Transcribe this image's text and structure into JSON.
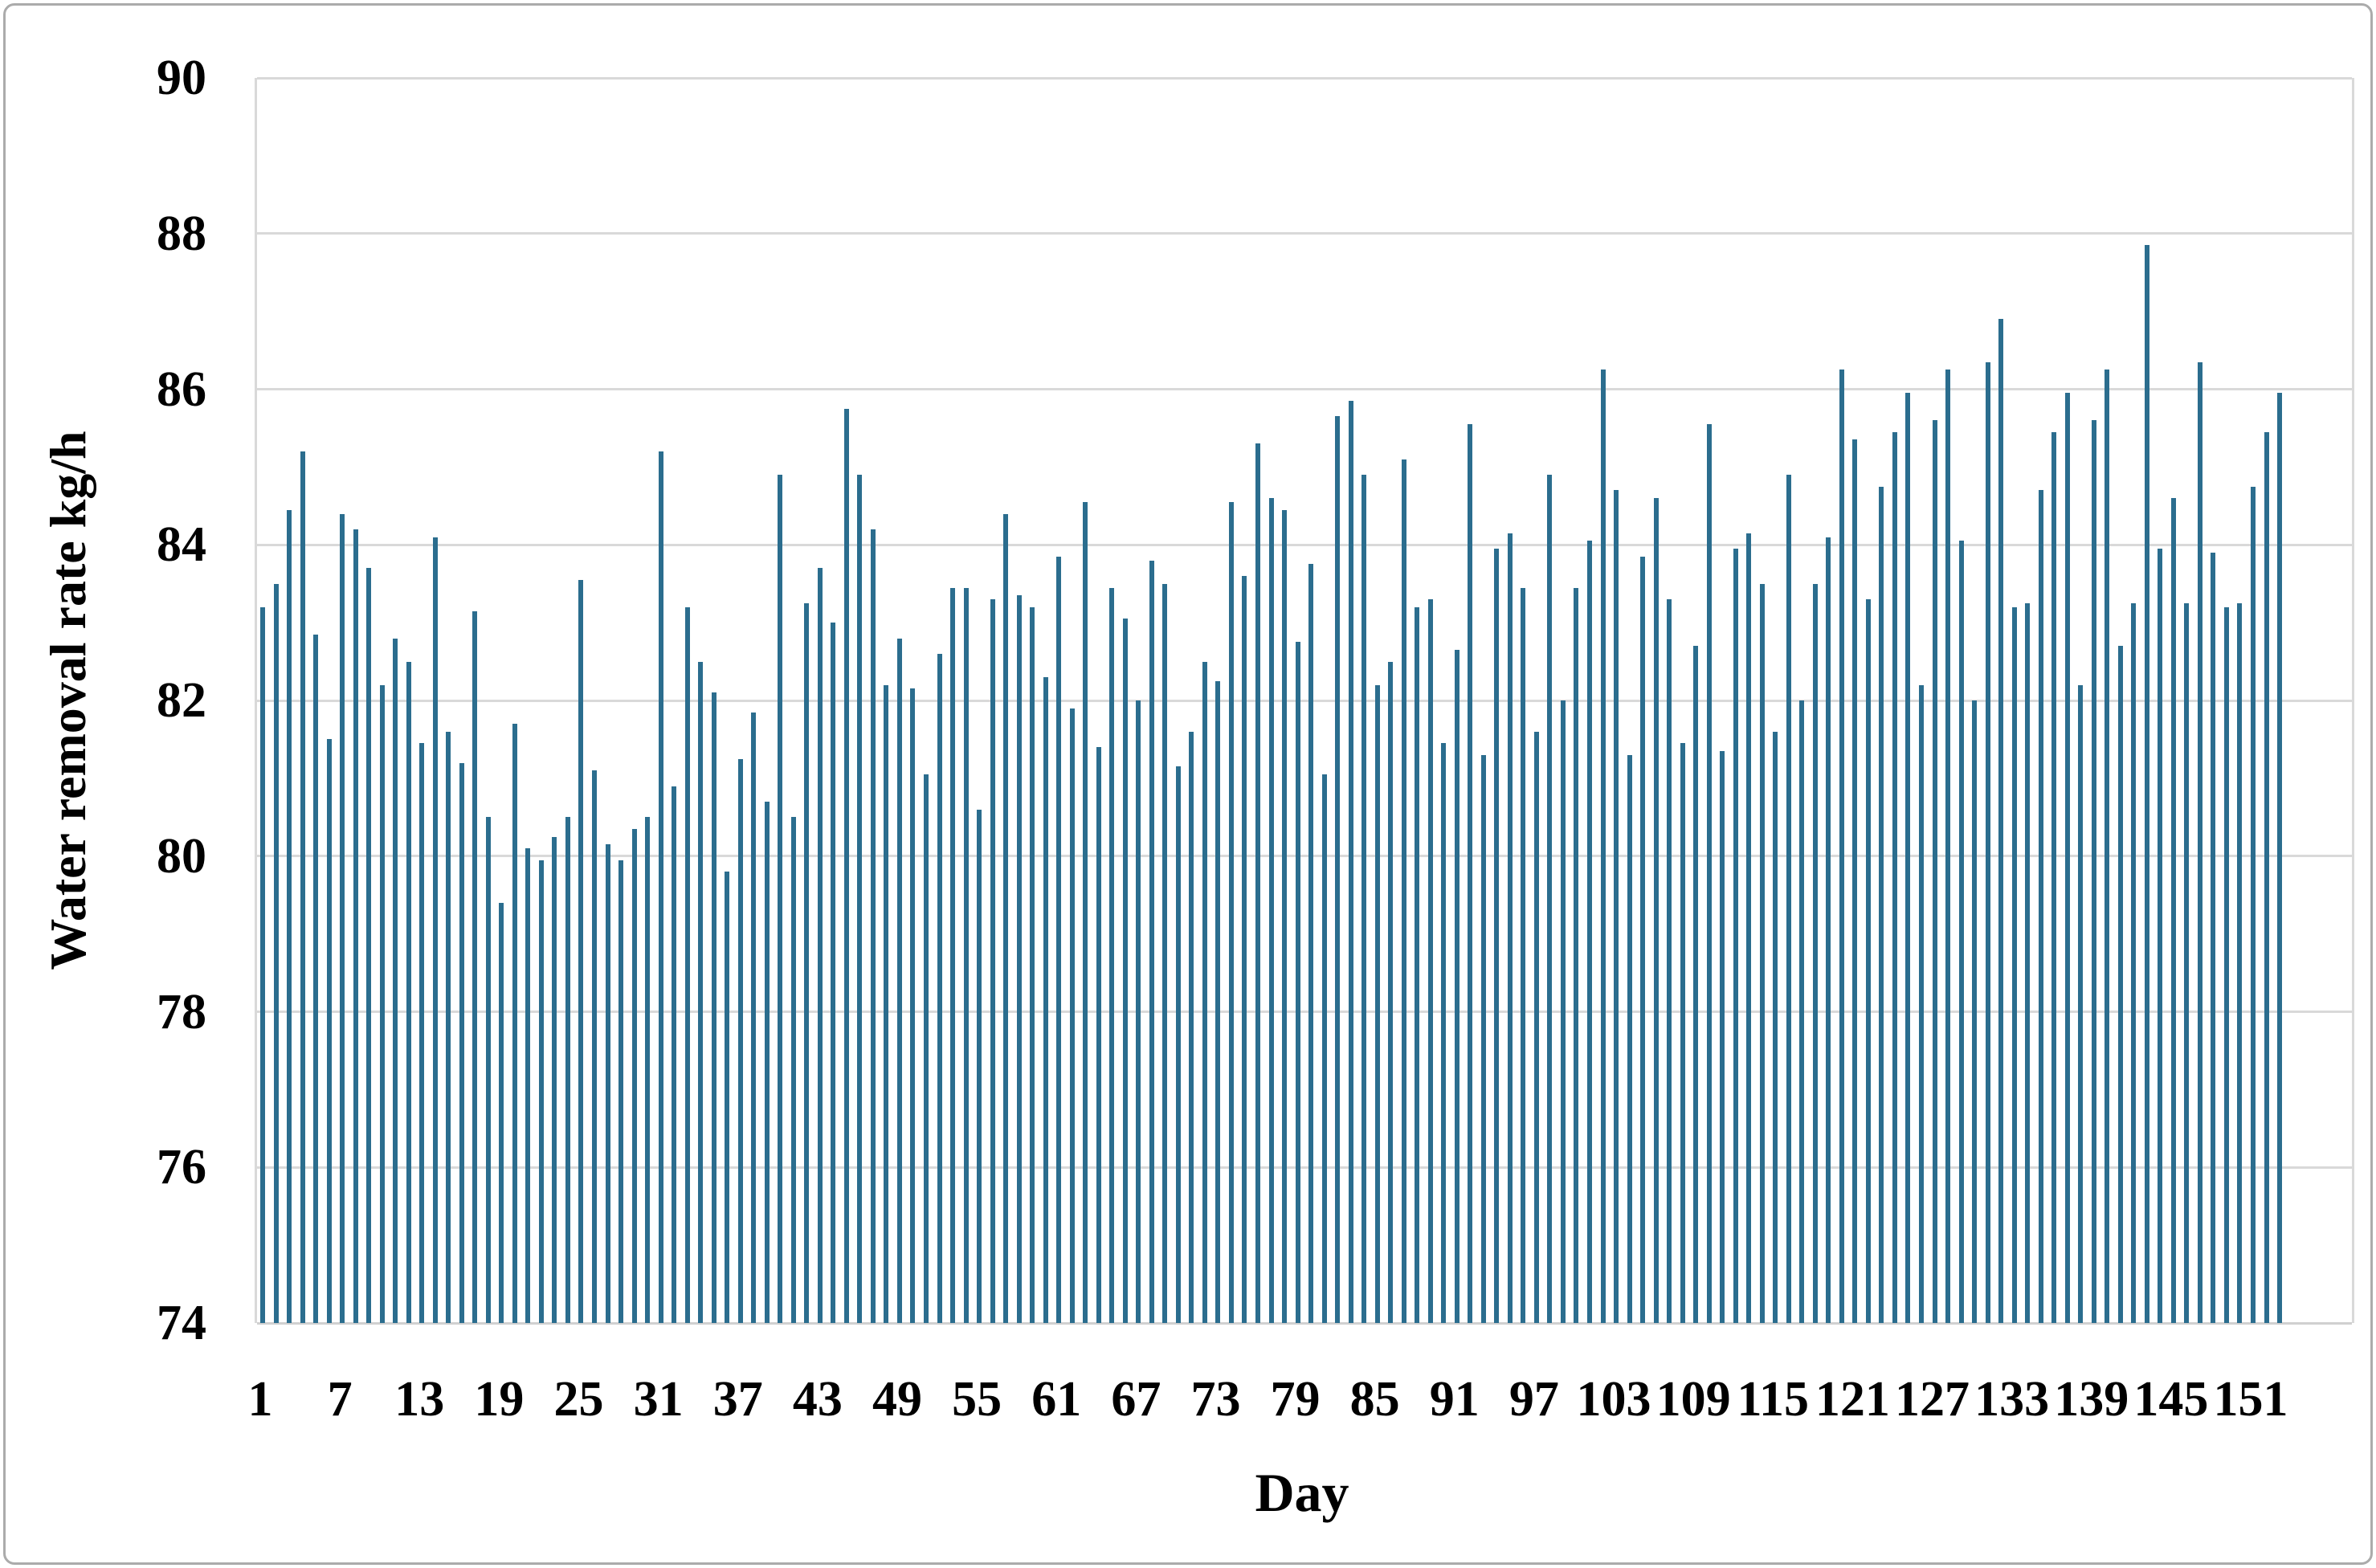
{
  "chart_data": {
    "type": "bar",
    "title": "",
    "xlabel": "Day",
    "ylabel": "Water removal rate kg/h",
    "ylim": [
      74,
      90
    ],
    "yticks": [
      74,
      76,
      78,
      80,
      82,
      84,
      86,
      88,
      90
    ],
    "xticks": [
      1,
      7,
      13,
      19,
      25,
      31,
      37,
      43,
      49,
      55,
      61,
      67,
      73,
      79,
      85,
      91,
      97,
      103,
      109,
      115,
      121,
      127,
      133,
      139,
      145,
      151
    ],
    "x_start_day": 1,
    "num_days": 153,
    "grid": true,
    "legend_position": "none",
    "bar_color": "#2b6d8e",
    "gridline_color": "#d9d9d9",
    "values": [
      83.2,
      83.5,
      84.45,
      85.2,
      82.85,
      81.5,
      84.4,
      84.2,
      83.7,
      82.2,
      82.8,
      82.5,
      81.45,
      84.1,
      81.6,
      81.2,
      83.15,
      80.5,
      79.4,
      81.7,
      80.1,
      79.95,
      80.25,
      80.5,
      83.55,
      81.1,
      80.15,
      79.95,
      80.35,
      80.5,
      85.2,
      80.9,
      83.2,
      82.5,
      82.1,
      79.8,
      81.25,
      81.85,
      80.7,
      84.9,
      80.5,
      83.25,
      83.7,
      83.0,
      85.75,
      84.9,
      84.2,
      82.2,
      82.8,
      82.15,
      81.05,
      82.6,
      83.45,
      83.45,
      80.6,
      83.3,
      84.4,
      83.35,
      83.2,
      82.3,
      83.85,
      81.9,
      84.55,
      81.4,
      83.45,
      83.05,
      82.0,
      83.8,
      83.5,
      81.15,
      81.6,
      82.5,
      82.25,
      84.55,
      83.6,
      85.3,
      84.6,
      84.45,
      82.75,
      83.75,
      81.05,
      85.65,
      85.85,
      84.9,
      82.2,
      82.5,
      85.1,
      83.2,
      83.3,
      81.45,
      82.65,
      85.55,
      81.3,
      83.95,
      84.15,
      83.45,
      81.6,
      84.9,
      82.0,
      83.45,
      84.05,
      86.25,
      84.7,
      81.3,
      83.85,
      84.6,
      83.3,
      81.45,
      82.7,
      85.55,
      81.35,
      83.95,
      84.15,
      83.5,
      81.6,
      84.9,
      82.0,
      83.5,
      84.1,
      86.25,
      85.35,
      83.3,
      84.75,
      85.45,
      85.95,
      82.2,
      85.6,
      86.25,
      84.05,
      82.0,
      86.35,
      86.9,
      83.2,
      83.25,
      84.7,
      85.45,
      85.95,
      82.2,
      85.6,
      86.25,
      82.7,
      83.25,
      87.85,
      83.95,
      84.6,
      83.25,
      86.35,
      83.9,
      83.2,
      83.25,
      84.75,
      85.45,
      85.95
    ]
  }
}
